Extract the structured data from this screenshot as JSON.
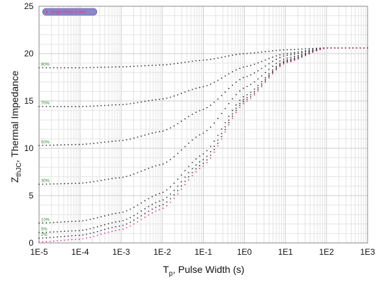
{
  "chart_data": {
    "type": "scatter",
    "title": "",
    "xlabel_main": "T",
    "xlabel_sub": "p",
    "xlabel_rest": ", Pulse Width (s)",
    "ylabel_main": "Z",
    "ylabel_sub": "thJC",
    "ylabel_rest": ", Thermal Impedance",
    "x_scale": "log",
    "xlim": [
      1e-05,
      1000
    ],
    "ylim": [
      0,
      25
    ],
    "x_ticks": [
      "1E-5",
      "1E-4",
      "1E-3",
      "1E-2",
      "1E-1",
      "1E0",
      "1E1",
      "1E2",
      "1E3"
    ],
    "y_ticks": [
      "0",
      "5",
      "10",
      "15",
      "20",
      "25"
    ],
    "grid": true,
    "legend": {
      "label": "Single Pulse Curve",
      "position": "top-left",
      "color": "#e0358a",
      "fill": "#8a86c9"
    },
    "colors": {
      "duty_series": "#333333",
      "single_pulse": "#e0358a",
      "series_label": "#2f8a2f",
      "grid_minor": "#e4e4e4",
      "grid_major": "#cccccc"
    },
    "series": [
      {
        "name": "90%",
        "label": "90%",
        "values": [
          [
            1e-05,
            18.5
          ],
          [
            0.0001,
            18.5
          ],
          [
            0.001,
            18.6
          ],
          [
            0.01,
            18.8
          ],
          [
            0.1,
            19.3
          ],
          [
            1,
            20.0
          ],
          [
            10,
            20.4
          ],
          [
            100,
            20.6
          ],
          [
            1000,
            20.6
          ]
        ]
      },
      {
        "name": "70%",
        "label": "70%",
        "values": [
          [
            1e-05,
            14.4
          ],
          [
            0.0001,
            14.4
          ],
          [
            0.001,
            14.6
          ],
          [
            0.01,
            15.2
          ],
          [
            0.1,
            16.5
          ],
          [
            1,
            18.6
          ],
          [
            10,
            20.0
          ],
          [
            100,
            20.6
          ],
          [
            1000,
            20.6
          ]
        ]
      },
      {
        "name": "50%",
        "label": "50%",
        "values": [
          [
            1e-05,
            10.3
          ],
          [
            0.0001,
            10.4
          ],
          [
            0.001,
            10.8
          ],
          [
            0.01,
            11.8
          ],
          [
            0.1,
            14.1
          ],
          [
            1,
            17.5
          ],
          [
            10,
            19.8
          ],
          [
            100,
            20.6
          ],
          [
            1000,
            20.6
          ]
        ]
      },
      {
        "name": "30%",
        "label": "30%",
        "values": [
          [
            1e-05,
            6.2
          ],
          [
            0.0001,
            6.3
          ],
          [
            0.001,
            6.9
          ],
          [
            0.01,
            8.3
          ],
          [
            0.1,
            11.6
          ],
          [
            1,
            16.4
          ],
          [
            10,
            19.5
          ],
          [
            100,
            20.6
          ],
          [
            1000,
            20.6
          ]
        ]
      },
      {
        "name": "10%",
        "label": "10%",
        "values": [
          [
            1e-05,
            2.1
          ],
          [
            0.0001,
            2.3
          ],
          [
            0.001,
            3.2
          ],
          [
            0.01,
            5.3
          ],
          [
            0.1,
            9.4
          ],
          [
            1,
            15.5
          ],
          [
            10,
            19.3
          ],
          [
            100,
            20.6
          ],
          [
            1000,
            20.6
          ]
        ]
      },
      {
        "name": "5%",
        "label": "5%",
        "values": [
          [
            1e-05,
            1.1
          ],
          [
            0.0001,
            1.3
          ],
          [
            0.001,
            2.3
          ],
          [
            0.01,
            4.5
          ],
          [
            0.1,
            8.8
          ],
          [
            1,
            15.2
          ],
          [
            10,
            19.2
          ],
          [
            100,
            20.6
          ],
          [
            1000,
            20.6
          ]
        ]
      },
      {
        "name": "2%",
        "label": "2%",
        "values": [
          [
            1e-05,
            0.5
          ],
          [
            0.0001,
            0.8
          ],
          [
            0.001,
            1.8
          ],
          [
            0.01,
            4.0
          ],
          [
            0.1,
            8.4
          ],
          [
            1,
            15.0
          ],
          [
            10,
            19.1
          ],
          [
            100,
            20.6
          ],
          [
            1000,
            20.6
          ]
        ]
      },
      {
        "name": "Single Pulse Curve",
        "label": "",
        "is_single_pulse": true,
        "values": [
          [
            1e-05,
            0.1
          ],
          [
            0.0001,
            0.4
          ],
          [
            0.001,
            1.4
          ],
          [
            0.01,
            3.6
          ],
          [
            0.1,
            8.1
          ],
          [
            1,
            14.8
          ],
          [
            10,
            19.0
          ],
          [
            100,
            20.6
          ],
          [
            1000,
            20.6
          ]
        ]
      }
    ]
  }
}
